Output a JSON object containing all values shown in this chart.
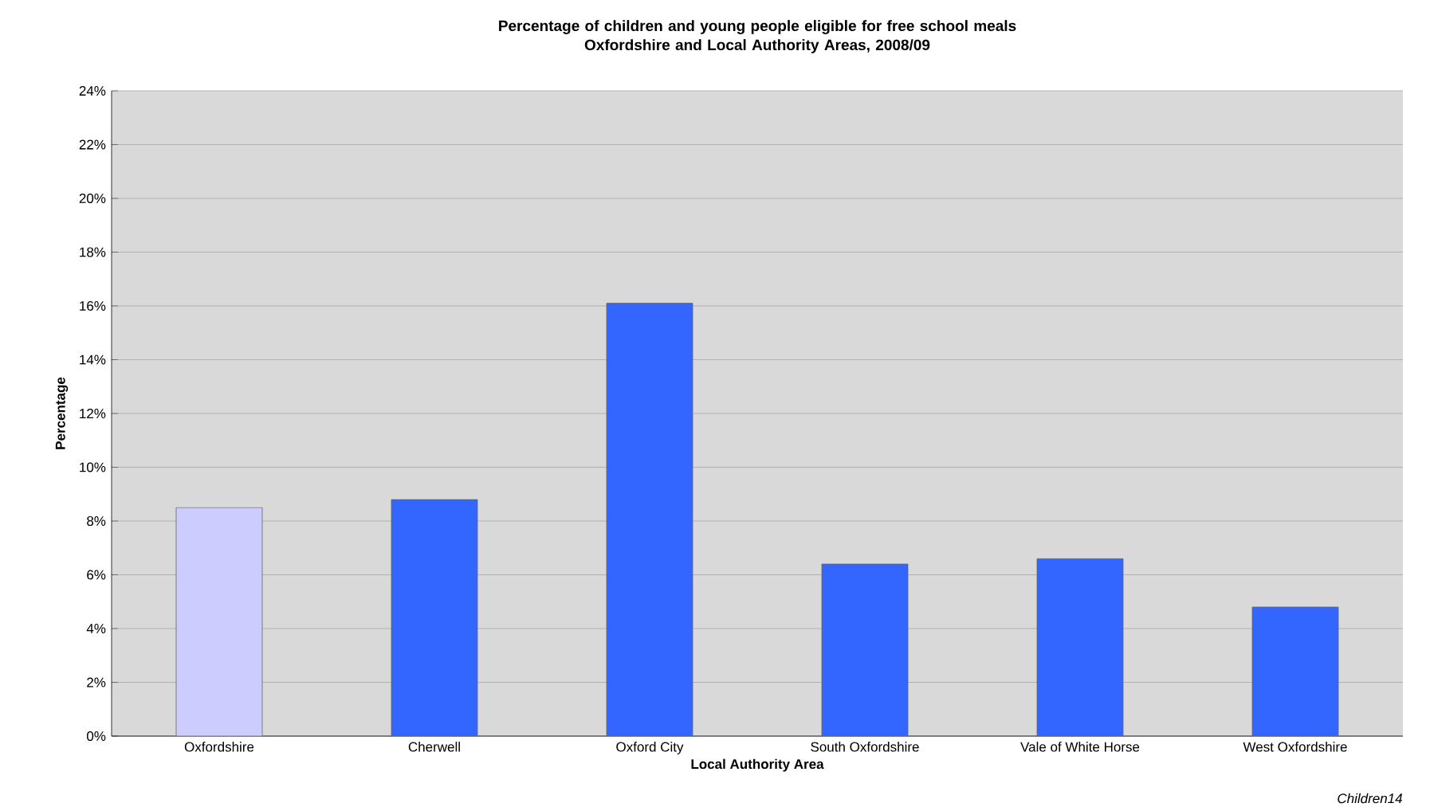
{
  "chart_data": {
    "type": "bar",
    "title": "Percentage of children and young people eligible for free school meals\nOxfordshire and Local Authority Areas, 2008/09",
    "xlabel": "Local Authority Area",
    "ylabel": "Percentage",
    "categories": [
      "Oxfordshire",
      "Cherwell",
      "Oxford City",
      "South Oxfordshire",
      "Vale of White Horse",
      "West Oxfordshire"
    ],
    "values": [
      8.5,
      8.8,
      16.1,
      6.4,
      6.6,
      4.8
    ],
    "colors": [
      "#ccccff",
      "#3366ff",
      "#3366ff",
      "#3366ff",
      "#3366ff",
      "#3366ff"
    ],
    "ylim": [
      0,
      24
    ],
    "yticks": [
      {
        "value": 0,
        "label": "0%"
      },
      {
        "value": 2,
        "label": "2%"
      },
      {
        "value": 4,
        "label": "4%"
      },
      {
        "value": 6,
        "label": "6%"
      },
      {
        "value": 8,
        "label": "8%"
      },
      {
        "value": 10,
        "label": "10%"
      },
      {
        "value": 12,
        "label": "12%"
      },
      {
        "value": 14,
        "label": "14%"
      },
      {
        "value": 16,
        "label": "16%"
      },
      {
        "value": 18,
        "label": "18%"
      },
      {
        "value": 20,
        "label": "20%"
      },
      {
        "value": 22,
        "label": "22%"
      },
      {
        "value": 24,
        "label": "24%"
      }
    ],
    "grid": "y",
    "annotations": [
      "Children14"
    ]
  }
}
